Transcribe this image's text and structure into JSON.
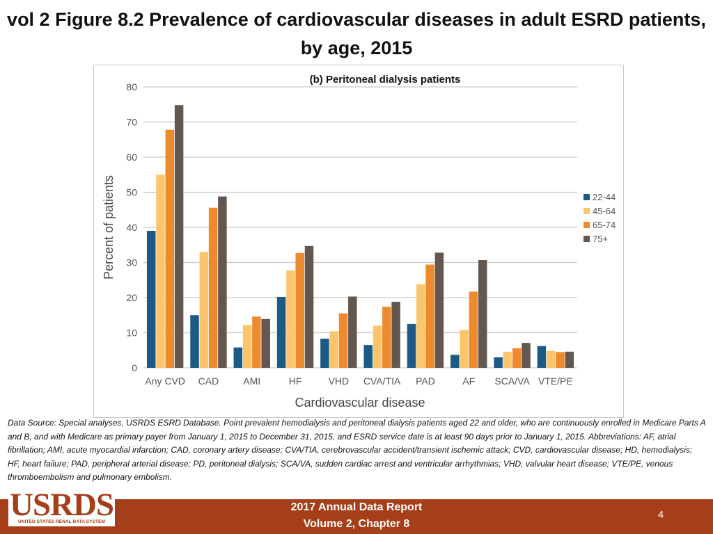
{
  "title": "vol 2 Figure 8.2 Prevalence of cardiovascular diseases in adult ESRD patients, by age, 2015",
  "logo": {
    "text": "USRDS",
    "subtext": "UNITED STATES RENAL DATA SYSTEM"
  },
  "footer": {
    "line1": "2017 Annual Data Report",
    "line2": "Volume 2, Chapter 8",
    "page_number": "4"
  },
  "source_note": "Data Source: Special analyses, USRDS ESRD Database. Point prevalent hemodialysis and peritoneal dialysis patients aged 22 and older, who are continuously enrolled in Medicare Parts A and B, and with Medicare as primary payer from January 1, 2015 to December 31, 2015, and ESRD service date is at least 90 days prior to January 1, 2015. Abbreviations: AF, atrial fibrillation; AMI, acute myocardial infarction; CAD, coronary artery disease; CVA/TIA, cerebrovascular accident/transient ischemic attack; CVD, cardiovascular disease; HD, hemodialysis; HF, heart failure; PAD, peripheral arterial disease; PD, peritoneal dialysis; SCA/VA, sudden cardiac arrest and ventricular arrhythmias; VHD, valvular heart disease; VTE/PE, venous thromboembolism and pulmonary embolism.",
  "colors": {
    "22-44": "#1b5a85",
    "45-64": "#fcc56b",
    "65-74": "#ee8a2e",
    "75+": "#64574f",
    "grid": "#c9c9c9",
    "axis_text": "#555555",
    "footer": "#a53f1a"
  },
  "chart_data": {
    "type": "bar",
    "title": "(b) Peritoneal dialysis patients",
    "xlabel": "Cardiovascular disease",
    "ylabel": "Percent of patients",
    "ylim": [
      0,
      80
    ],
    "yticks": [
      0,
      10,
      20,
      30,
      40,
      50,
      60,
      70,
      80
    ],
    "grid": true,
    "legend_position": "right",
    "categories": [
      "Any CVD",
      "CAD",
      "AMI",
      "HF",
      "VHD",
      "CVA/TIA",
      "PAD",
      "AF",
      "SCA/VA",
      "VTE/PE"
    ],
    "series": [
      {
        "name": "22-44",
        "values": [
          39,
          15,
          5.8,
          20.2,
          8.3,
          6.5,
          12.5,
          3.7,
          3,
          6.2
        ]
      },
      {
        "name": "45-64",
        "values": [
          55,
          33,
          12.2,
          27.7,
          10.4,
          12,
          23.8,
          10.8,
          4.6,
          4.8
        ]
      },
      {
        "name": "65-74",
        "values": [
          67.8,
          45.6,
          14.6,
          32.7,
          15.5,
          17.4,
          29.4,
          21.7,
          5.6,
          4.5
        ]
      },
      {
        "name": "75+",
        "values": [
          74.8,
          48.8,
          13.9,
          34.7,
          20.3,
          18.8,
          32.8,
          30.7,
          7.1,
          4.6
        ]
      }
    ]
  }
}
